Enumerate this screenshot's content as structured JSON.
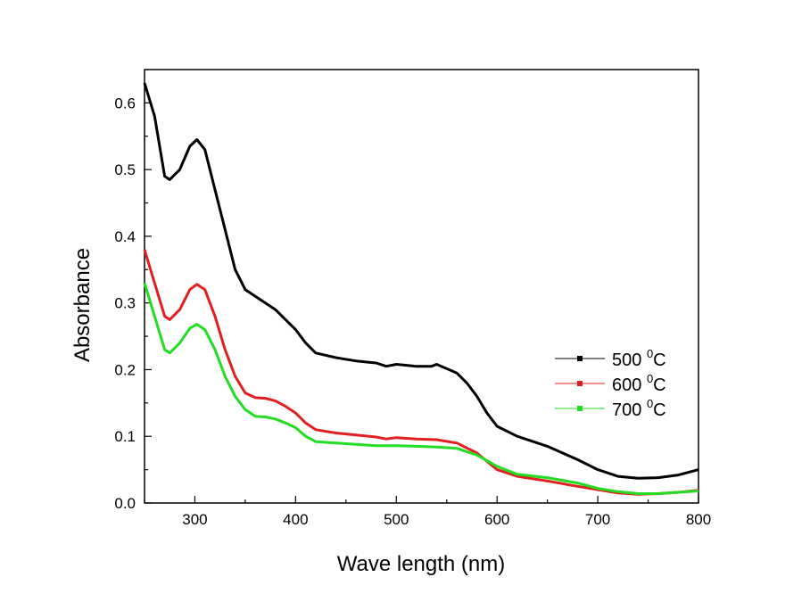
{
  "chart_data": {
    "type": "line",
    "title": "",
    "xlabel": "Wave length (nm)",
    "ylabel": "Absorbance",
    "xlim": [
      250,
      800
    ],
    "ylim": [
      0,
      0.65
    ],
    "xticks": [
      "300",
      "400",
      "500",
      "600",
      "700",
      "800"
    ],
    "yticks": [
      "0.0",
      "0.1",
      "0.2",
      "0.3",
      "0.4",
      "0.5",
      "0.6"
    ],
    "grid": false,
    "legend_position": "center-right",
    "series": [
      {
        "name": "500 0C",
        "label_value": "500",
        "label_sup": "0",
        "label_unit": "C",
        "color": "#000000",
        "x": [
          250,
          260,
          270,
          275,
          285,
          295,
          302,
          310,
          320,
          330,
          340,
          350,
          360,
          370,
          380,
          390,
          400,
          410,
          420,
          440,
          460,
          480,
          490,
          500,
          520,
          535,
          540,
          560,
          570,
          580,
          590,
          600,
          620,
          650,
          680,
          700,
          720,
          740,
          760,
          780,
          800
        ],
        "y": [
          0.63,
          0.58,
          0.49,
          0.485,
          0.5,
          0.535,
          0.545,
          0.53,
          0.47,
          0.41,
          0.35,
          0.32,
          0.31,
          0.3,
          0.29,
          0.275,
          0.26,
          0.24,
          0.225,
          0.218,
          0.213,
          0.21,
          0.205,
          0.208,
          0.205,
          0.205,
          0.208,
          0.195,
          0.18,
          0.16,
          0.135,
          0.115,
          0.1,
          0.085,
          0.065,
          0.05,
          0.04,
          0.037,
          0.038,
          0.042,
          0.05
        ]
      },
      {
        "name": "600 0C",
        "label_value": "600",
        "label_sup": "0",
        "label_unit": "C",
        "color": "#e02020",
        "x": [
          250,
          260,
          270,
          275,
          285,
          295,
          302,
          310,
          320,
          330,
          340,
          350,
          360,
          370,
          380,
          390,
          400,
          410,
          420,
          440,
          460,
          480,
          490,
          500,
          520,
          540,
          560,
          580,
          600,
          620,
          650,
          680,
          700,
          720,
          740,
          760,
          780,
          800
        ],
        "y": [
          0.38,
          0.33,
          0.28,
          0.275,
          0.29,
          0.32,
          0.328,
          0.32,
          0.28,
          0.23,
          0.19,
          0.165,
          0.158,
          0.157,
          0.153,
          0.145,
          0.135,
          0.12,
          0.11,
          0.105,
          0.102,
          0.099,
          0.096,
          0.098,
          0.096,
          0.095,
          0.09,
          0.075,
          0.05,
          0.04,
          0.033,
          0.025,
          0.02,
          0.015,
          0.013,
          0.014,
          0.016,
          0.019
        ]
      },
      {
        "name": "700 0C",
        "label_value": "700",
        "label_sup": "0",
        "label_unit": "C",
        "color": "#22dd22",
        "x": [
          250,
          260,
          270,
          275,
          285,
          295,
          302,
          310,
          320,
          330,
          340,
          350,
          360,
          370,
          380,
          390,
          400,
          410,
          420,
          440,
          460,
          480,
          500,
          520,
          540,
          560,
          580,
          600,
          620,
          650,
          680,
          700,
          720,
          740,
          760,
          780,
          800
        ],
        "y": [
          0.33,
          0.28,
          0.23,
          0.225,
          0.24,
          0.262,
          0.268,
          0.26,
          0.23,
          0.19,
          0.16,
          0.14,
          0.13,
          0.129,
          0.126,
          0.12,
          0.113,
          0.1,
          0.092,
          0.09,
          0.088,
          0.086,
          0.086,
          0.085,
          0.084,
          0.082,
          0.072,
          0.055,
          0.043,
          0.038,
          0.03,
          0.022,
          0.017,
          0.014,
          0.014,
          0.016,
          0.018
        ]
      }
    ]
  }
}
